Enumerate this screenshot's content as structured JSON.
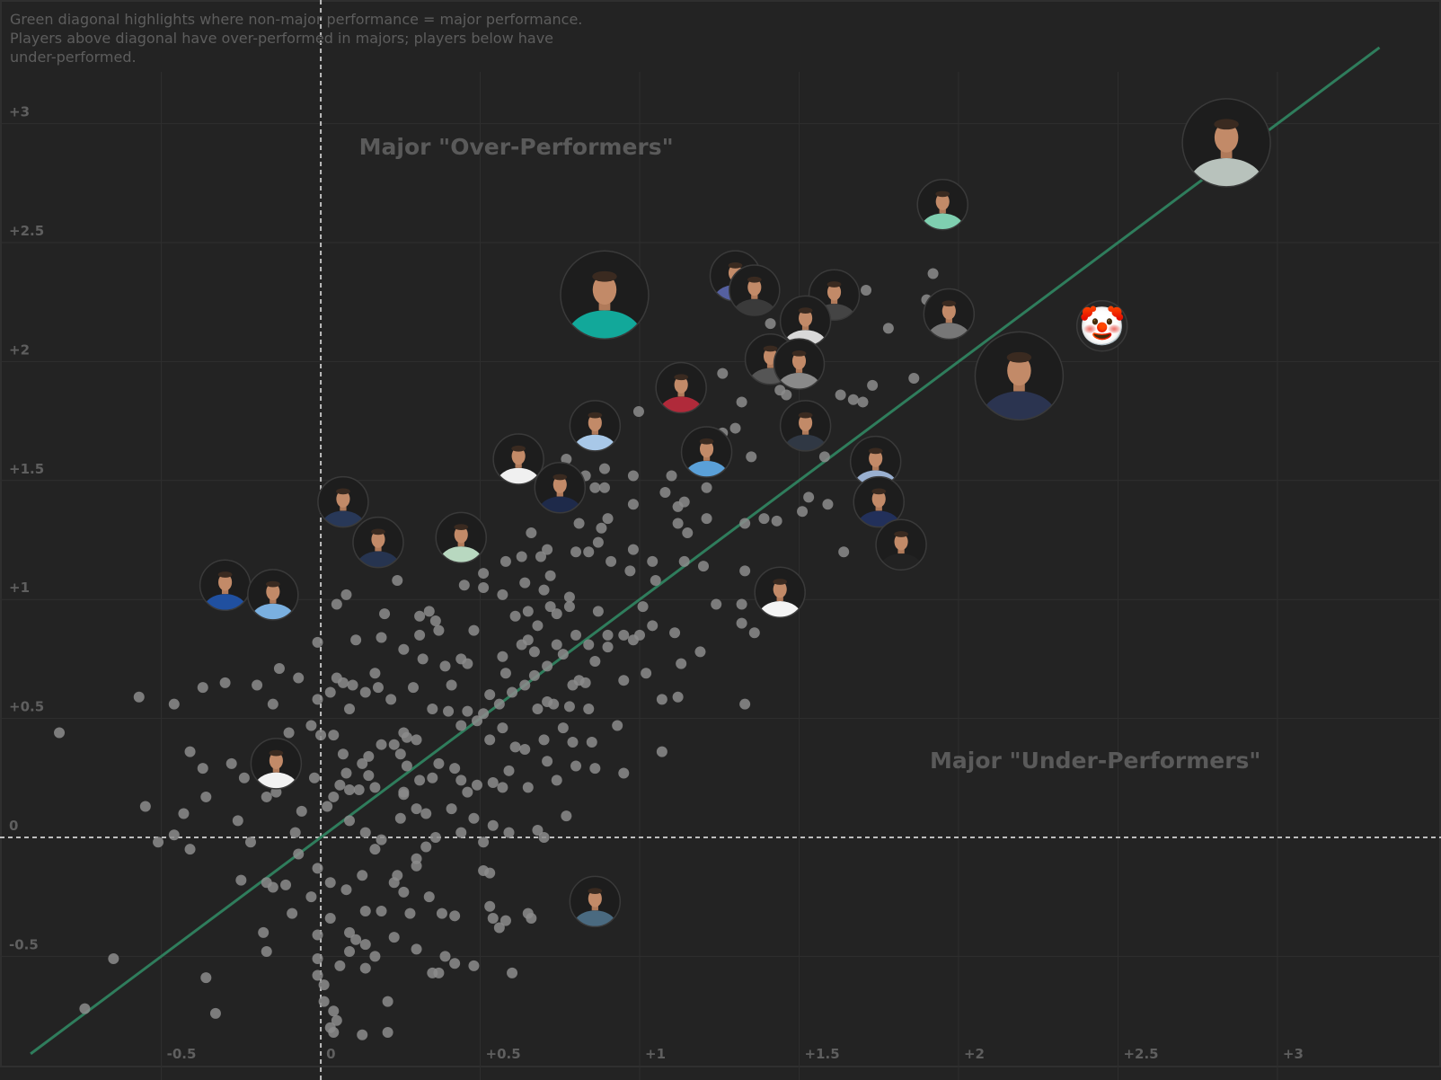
{
  "chart_data": {
    "type": "scatter",
    "title": "",
    "note": "Green diagonal highlights where non-major performance = major performance. Players above diagonal have over-performed in majors; players below have under-performed.",
    "xlabel": "",
    "ylabel": "",
    "xlim": [
      -1.006,
      3.513
    ],
    "ylim": [
      -1.02,
      3.52
    ],
    "grid": true,
    "x_ticks": [
      {
        "value": -0.5,
        "label": "-0.5"
      },
      {
        "value": 0,
        "label": "0"
      },
      {
        "value": 0.5,
        "label": "+0.5"
      },
      {
        "value": 1,
        "label": "+1"
      },
      {
        "value": 1.5,
        "label": "+1.5"
      },
      {
        "value": 2,
        "label": "+2"
      },
      {
        "value": 2.5,
        "label": "+2.5"
      },
      {
        "value": 3,
        "label": "+3"
      }
    ],
    "y_ticks": [
      {
        "value": -0.5,
        "label": "-0.5"
      },
      {
        "value": 0,
        "label": "0"
      },
      {
        "value": 0.5,
        "label": "+0.5"
      },
      {
        "value": 1,
        "label": "+1"
      },
      {
        "value": 1.5,
        "label": "+1.5"
      },
      {
        "value": 2,
        "label": "+2"
      },
      {
        "value": 2.5,
        "label": "+2.5"
      },
      {
        "value": 3,
        "label": "+3"
      }
    ],
    "reference_lines": {
      "x_zero": 0,
      "y_zero": 0
    },
    "diagonal": {
      "from": -0.91,
      "to": 3.32,
      "color": "#2f7d5c"
    },
    "annotations": [
      {
        "text": "Major \"Over-Performers\"",
        "x": 0.12,
        "y": 2.87
      },
      {
        "text": "Major \"Under-Performers\"",
        "x": 1.91,
        "y": 0.29
      }
    ],
    "colors": {
      "background": "#232323",
      "grid": "#2f2f2f",
      "dot": "#8c8c8c",
      "dashed": "#bdbdbd"
    },
    "highlighted_players": [
      {
        "x": 2.84,
        "y": 2.92,
        "size": "large",
        "shirt": "#b8c2bc",
        "kind": "photo"
      },
      {
        "x": 0.89,
        "y": 2.28,
        "size": "large",
        "shirt": "#12a89a",
        "kind": "photo"
      },
      {
        "x": 2.19,
        "y": 1.94,
        "size": "large",
        "shirt": "#2b3450",
        "kind": "photo"
      },
      {
        "x": 2.45,
        "y": 2.15,
        "size": "small",
        "shirt": "#e03030",
        "kind": "clown"
      },
      {
        "x": 1.95,
        "y": 2.66,
        "size": "small",
        "shirt": "#7fcfb0",
        "kind": "photo"
      },
      {
        "x": 1.3,
        "y": 2.36,
        "size": "small",
        "shirt": "#5560a0",
        "kind": "photo"
      },
      {
        "x": 1.36,
        "y": 2.3,
        "size": "small",
        "shirt": "#3a3a3a",
        "kind": "photo"
      },
      {
        "x": 1.61,
        "y": 2.28,
        "size": "small",
        "shirt": "#444444",
        "kind": "photo"
      },
      {
        "x": 1.52,
        "y": 2.17,
        "size": "small",
        "shirt": "#d8d8d8",
        "kind": "photo"
      },
      {
        "x": 1.97,
        "y": 2.2,
        "size": "small",
        "shirt": "#777777",
        "kind": "photo"
      },
      {
        "x": 1.41,
        "y": 2.01,
        "size": "small",
        "shirt": "#555555",
        "kind": "photo"
      },
      {
        "x": 1.5,
        "y": 1.99,
        "size": "small",
        "shirt": "#8a8a8a",
        "kind": "photo"
      },
      {
        "x": 1.13,
        "y": 1.89,
        "size": "small",
        "shirt": "#b02a3a",
        "kind": "photo"
      },
      {
        "x": 0.86,
        "y": 1.73,
        "size": "small",
        "shirt": "#a8c8e8",
        "kind": "photo"
      },
      {
        "x": 1.52,
        "y": 1.73,
        "size": "small",
        "shirt": "#303844",
        "kind": "photo"
      },
      {
        "x": 1.21,
        "y": 1.62,
        "size": "small",
        "shirt": "#5aa0d8",
        "kind": "photo"
      },
      {
        "x": 0.62,
        "y": 1.59,
        "size": "small",
        "shirt": "#f0f0f0",
        "kind": "photo"
      },
      {
        "x": 0.75,
        "y": 1.47,
        "size": "small",
        "shirt": "#1e2a4a",
        "kind": "photo"
      },
      {
        "x": 1.74,
        "y": 1.58,
        "size": "small",
        "shirt": "#9ab0d0",
        "kind": "photo"
      },
      {
        "x": 1.75,
        "y": 1.41,
        "size": "small",
        "shirt": "#22305a",
        "kind": "photo"
      },
      {
        "x": 1.82,
        "y": 1.23,
        "size": "small",
        "shirt": "#222222",
        "kind": "photo"
      },
      {
        "x": 0.07,
        "y": 1.41,
        "size": "small",
        "shirt": "#283858",
        "kind": "photo"
      },
      {
        "x": 0.18,
        "y": 1.24,
        "size": "small",
        "shirt": "#263450",
        "kind": "photo"
      },
      {
        "x": 0.44,
        "y": 1.26,
        "size": "small",
        "shirt": "#b8d8c0",
        "kind": "photo"
      },
      {
        "x": 1.44,
        "y": 1.03,
        "size": "small",
        "shirt": "#f4f4f4",
        "kind": "photo"
      },
      {
        "x": -0.3,
        "y": 1.06,
        "size": "small",
        "shirt": "#2050a0",
        "kind": "photo"
      },
      {
        "x": -0.15,
        "y": 1.02,
        "size": "small",
        "shirt": "#7ab0e0",
        "kind": "photo"
      },
      {
        "x": -0.14,
        "y": 0.31,
        "size": "small",
        "shirt": "#f2f2f2",
        "kind": "photo"
      },
      {
        "x": 0.86,
        "y": -0.27,
        "size": "small",
        "shirt": "#4a6a80",
        "kind": "photo"
      }
    ],
    "points": [
      [
        1.92,
        2.37
      ],
      [
        1.71,
        2.3
      ],
      [
        1.78,
        2.14
      ],
      [
        1.9,
        2.26
      ],
      [
        1.26,
        1.95
      ],
      [
        1.32,
        1.83
      ],
      [
        0.997,
        1.79
      ],
      [
        1.41,
        2.16
      ],
      [
        1.44,
        1.88
      ],
      [
        1.46,
        1.86
      ],
      [
        1.63,
        1.86
      ],
      [
        1.67,
        1.84
      ],
      [
        1.7,
        1.83
      ],
      [
        1.73,
        1.9
      ],
      [
        1.86,
        1.93
      ],
      [
        1.3,
        1.72
      ],
      [
        1.26,
        1.7
      ],
      [
        1.35,
        1.6
      ],
      [
        1.58,
        1.6
      ],
      [
        1.53,
        1.43
      ],
      [
        1.51,
        1.37
      ],
      [
        1.59,
        1.4
      ],
      [
        1.64,
        1.2
      ],
      [
        1.43,
        1.33
      ],
      [
        1.39,
        1.34
      ],
      [
        1.33,
        1.32
      ],
      [
        1.33,
        1.12
      ],
      [
        1.24,
        0.98
      ],
      [
        1.32,
        0.98
      ],
      [
        1.32,
        0.9
      ],
      [
        1.36,
        0.86
      ],
      [
        1.33,
        0.56
      ],
      [
        1.11,
        0.86
      ],
      [
        1.19,
        0.78
      ],
      [
        1.13,
        0.73
      ],
      [
        1.12,
        0.59
      ],
      [
        1.07,
        0.58
      ],
      [
        1.07,
        0.36
      ],
      [
        0.95,
        0.27
      ],
      [
        0.93,
        0.47
      ],
      [
        1.02,
        0.69
      ],
      [
        0.98,
        0.83
      ],
      [
        0.95,
        0.85
      ],
      [
        1.0,
        0.85
      ],
      [
        1.04,
        0.89
      ],
      [
        1.01,
        0.97
      ],
      [
        1.05,
        1.08
      ],
      [
        0.97,
        1.12
      ],
      [
        0.98,
        1.21
      ],
      [
        1.04,
        1.16
      ],
      [
        1.14,
        1.16
      ],
      [
        1.2,
        1.14
      ],
      [
        1.15,
        1.28
      ],
      [
        1.12,
        1.32
      ],
      [
        1.12,
        1.39
      ],
      [
        1.21,
        1.34
      ],
      [
        1.08,
        1.45
      ],
      [
        1.14,
        1.41
      ],
      [
        1.21,
        1.47
      ],
      [
        1.1,
        1.52
      ],
      [
        0.98,
        1.52
      ],
      [
        0.98,
        1.4
      ],
      [
        0.89,
        1.55
      ],
      [
        0.83,
        1.52
      ],
      [
        0.89,
        1.47
      ],
      [
        0.86,
        1.47
      ],
      [
        0.83,
        1.69
      ],
      [
        0.77,
        1.59
      ],
      [
        0.9,
        1.34
      ],
      [
        0.88,
        1.3
      ],
      [
        0.81,
        1.32
      ],
      [
        0.84,
        1.2
      ],
      [
        0.87,
        1.24
      ],
      [
        0.8,
        1.2
      ],
      [
        0.91,
        1.16
      ],
      [
        0.66,
        1.28
      ],
      [
        0.71,
        1.21
      ],
      [
        0.63,
        1.18
      ],
      [
        0.69,
        1.18
      ],
      [
        0.58,
        1.16
      ],
      [
        0.72,
        1.1
      ],
      [
        0.78,
        1.01
      ],
      [
        0.64,
        1.07
      ],
      [
        0.7,
        1.04
      ],
      [
        0.57,
        1.02
      ],
      [
        0.51,
        1.11
      ],
      [
        0.51,
        1.05
      ],
      [
        0.45,
        1.06
      ],
      [
        0.24,
        1.08
      ],
      [
        0.05,
        0.98
      ],
      [
        0.08,
        1.02
      ],
      [
        0.2,
        0.94
      ],
      [
        -0.01,
        0.82
      ],
      [
        0.31,
        0.93
      ],
      [
        0.34,
        0.95
      ],
      [
        0.36,
        0.91
      ],
      [
        0.37,
        0.87
      ],
      [
        0.31,
        0.85
      ],
      [
        0.26,
        0.79
      ],
      [
        0.32,
        0.75
      ],
      [
        0.19,
        0.84
      ],
      [
        0.11,
        0.83
      ],
      [
        0.17,
        0.69
      ],
      [
        0.18,
        0.63
      ],
      [
        0.14,
        0.61
      ],
      [
        0.1,
        0.64
      ],
      [
        0.07,
        0.65
      ],
      [
        0.05,
        0.67
      ],
      [
        0.03,
        0.61
      ],
      [
        -0.01,
        0.58
      ],
      [
        0.09,
        0.54
      ],
      [
        0.22,
        0.58
      ],
      [
        0.29,
        0.63
      ],
      [
        0.39,
        0.72
      ],
      [
        0.41,
        0.64
      ],
      [
        0.48,
        0.87
      ],
      [
        0.44,
        0.75
      ],
      [
        0.46,
        0.73
      ],
      [
        0.57,
        0.76
      ],
      [
        0.61,
        0.93
      ],
      [
        0.65,
        0.95
      ],
      [
        0.68,
        0.89
      ],
      [
        0.72,
        0.97
      ],
      [
        0.74,
        0.94
      ],
      [
        0.78,
        0.97
      ],
      [
        0.65,
        0.83
      ],
      [
        0.63,
        0.81
      ],
      [
        0.67,
        0.78
      ],
      [
        0.74,
        0.81
      ],
      [
        0.76,
        0.77
      ],
      [
        0.71,
        0.72
      ],
      [
        0.8,
        0.85
      ],
      [
        0.87,
        0.95
      ],
      [
        0.9,
        0.85
      ],
      [
        0.84,
        0.81
      ],
      [
        0.9,
        0.8
      ],
      [
        0.86,
        0.74
      ],
      [
        0.81,
        0.66
      ],
      [
        0.79,
        0.64
      ],
      [
        0.83,
        0.65
      ],
      [
        0.67,
        0.68
      ],
      [
        0.58,
        0.69
      ],
      [
        0.64,
        0.64
      ],
      [
        0.6,
        0.61
      ],
      [
        0.71,
        0.57
      ],
      [
        0.73,
        0.56
      ],
      [
        0.68,
        0.54
      ],
      [
        0.78,
        0.55
      ],
      [
        0.84,
        0.54
      ],
      [
        0.95,
        0.66
      ],
      [
        0.53,
        0.6
      ],
      [
        0.56,
        0.56
      ],
      [
        0.51,
        0.52
      ],
      [
        0.46,
        0.53
      ],
      [
        0.49,
        0.49
      ],
      [
        0.4,
        0.53
      ],
      [
        0.35,
        0.54
      ],
      [
        0.44,
        0.47
      ],
      [
        0.57,
        0.46
      ],
      [
        0.53,
        0.41
      ],
      [
        0.61,
        0.38
      ],
      [
        0.64,
        0.37
      ],
      [
        0.7,
        0.41
      ],
      [
        0.79,
        0.4
      ],
      [
        0.85,
        0.4
      ],
      [
        0.71,
        0.32
      ],
      [
        0.74,
        0.24
      ],
      [
        0.8,
        0.3
      ],
      [
        0.86,
        0.29
      ],
      [
        0.76,
        0.46
      ],
      [
        0.59,
        0.28
      ],
      [
        0.57,
        0.21
      ],
      [
        0.65,
        0.21
      ],
      [
        0.54,
        0.23
      ],
      [
        0.49,
        0.22
      ],
      [
        0.46,
        0.19
      ],
      [
        0.42,
        0.29
      ],
      [
        0.44,
        0.24
      ],
      [
        0.37,
        0.31
      ],
      [
        0.35,
        0.25
      ],
      [
        0.31,
        0.24
      ],
      [
        0.27,
        0.3
      ],
      [
        0.25,
        0.35
      ],
      [
        0.27,
        0.42
      ],
      [
        0.3,
        0.41
      ],
      [
        0.26,
        0.44
      ],
      [
        0.19,
        0.39
      ],
      [
        0.23,
        0.39
      ],
      [
        0.15,
        0.34
      ],
      [
        0.13,
        0.31
      ],
      [
        0.15,
        0.26
      ],
      [
        0.17,
        0.21
      ],
      [
        0.12,
        0.2
      ],
      [
        0.09,
        0.2
      ],
      [
        0.06,
        0.22
      ],
      [
        0.08,
        0.27
      ],
      [
        0.07,
        0.35
      ],
      [
        0.04,
        0.43
      ],
      [
        0.0,
        0.43
      ],
      [
        -0.03,
        0.47
      ],
      [
        -0.02,
        0.25
      ],
      [
        0.02,
        0.13
      ],
      [
        0.04,
        0.17
      ],
      [
        0.09,
        0.07
      ],
      [
        0.14,
        0.02
      ],
      [
        0.19,
        -0.01
      ],
      [
        0.25,
        0.08
      ],
      [
        0.26,
        0.19
      ],
      [
        0.3,
        0.12
      ],
      [
        0.33,
        0.1
      ],
      [
        0.41,
        0.12
      ],
      [
        0.48,
        0.08
      ],
      [
        0.44,
        0.02
      ],
      [
        0.36,
        0.0
      ],
      [
        0.54,
        0.05
      ],
      [
        0.59,
        0.02
      ],
      [
        0.68,
        0.03
      ],
      [
        0.7,
        0.0
      ],
      [
        0.77,
        0.09
      ],
      [
        -0.06,
        0.11
      ],
      [
        -0.08,
        0.02
      ],
      [
        -0.14,
        0.19
      ],
      [
        -0.17,
        0.17
      ],
      [
        -0.22,
        -0.02
      ],
      [
        -0.26,
        0.07
      ],
      [
        -0.24,
        0.25
      ],
      [
        -0.28,
        0.31
      ],
      [
        -0.37,
        0.29
      ],
      [
        -0.41,
        0.36
      ],
      [
        -0.36,
        0.17
      ],
      [
        -0.43,
        0.1
      ],
      [
        -0.46,
        0.01
      ],
      [
        -0.51,
        -0.02
      ],
      [
        -0.41,
        -0.05
      ],
      [
        -0.55,
        0.13
      ],
      [
        -0.1,
        0.44
      ],
      [
        -0.15,
        0.56
      ],
      [
        -0.2,
        0.64
      ],
      [
        -0.13,
        0.71
      ],
      [
        -0.07,
        0.67
      ],
      [
        -0.3,
        0.65
      ],
      [
        -0.37,
        0.63
      ],
      [
        -0.46,
        0.56
      ],
      [
        -0.57,
        0.59
      ],
      [
        -0.82,
        0.44
      ],
      [
        -0.07,
        -0.07
      ],
      [
        -0.01,
        -0.13
      ],
      [
        -0.11,
        -0.2
      ],
      [
        -0.15,
        -0.21
      ],
      [
        -0.17,
        -0.19
      ],
      [
        -0.25,
        -0.18
      ],
      [
        -0.09,
        -0.32
      ],
      [
        -0.03,
        -0.25
      ],
      [
        0.03,
        -0.19
      ],
      [
        0.08,
        -0.22
      ],
      [
        0.13,
        -0.16
      ],
      [
        0.03,
        -0.34
      ],
      [
        0.14,
        -0.31
      ],
      [
        0.19,
        -0.31
      ],
      [
        0.23,
        -0.19
      ],
      [
        0.24,
        -0.16
      ],
      [
        0.26,
        -0.23
      ],
      [
        0.28,
        -0.32
      ],
      [
        0.3,
        -0.09
      ],
      [
        0.33,
        -0.04
      ],
      [
        0.3,
        -0.12
      ],
      [
        0.17,
        -0.05
      ],
      [
        0.34,
        -0.25
      ],
      [
        0.38,
        -0.32
      ],
      [
        0.42,
        -0.33
      ],
      [
        0.51,
        -0.14
      ],
      [
        0.53,
        -0.15
      ],
      [
        0.53,
        -0.29
      ],
      [
        0.54,
        -0.34
      ],
      [
        0.56,
        -0.38
      ],
      [
        0.58,
        -0.35
      ],
      [
        0.65,
        -0.32
      ],
      [
        0.66,
        -0.34
      ],
      [
        0.51,
        -0.02
      ],
      [
        -0.18,
        -0.4
      ],
      [
        -0.17,
        -0.48
      ],
      [
        -0.36,
        -0.59
      ],
      [
        -0.33,
        -0.74
      ],
      [
        -0.65,
        -0.51
      ],
      [
        -0.74,
        -0.72
      ],
      [
        -0.01,
        -0.41
      ],
      [
        0.09,
        -0.4
      ],
      [
        0.11,
        -0.43
      ],
      [
        0.14,
        -0.45
      ],
      [
        0.09,
        -0.48
      ],
      [
        0.17,
        -0.5
      ],
      [
        0.06,
        -0.54
      ],
      [
        0.14,
        -0.55
      ],
      [
        0.23,
        -0.42
      ],
      [
        0.3,
        -0.47
      ],
      [
        0.39,
        -0.5
      ],
      [
        0.42,
        -0.53
      ],
      [
        0.35,
        -0.57
      ],
      [
        0.37,
        -0.57
      ],
      [
        0.48,
        -0.54
      ],
      [
        0.6,
        -0.57
      ],
      [
        -0.01,
        -0.51
      ],
      [
        -0.01,
        -0.58
      ],
      [
        0.01,
        -0.62
      ],
      [
        0.01,
        -0.69
      ],
      [
        0.21,
        -0.69
      ],
      [
        0.04,
        -0.73
      ],
      [
        0.05,
        -0.77
      ],
      [
        0.03,
        -0.8
      ],
      [
        0.13,
        -0.83
      ],
      [
        0.21,
        -0.82
      ],
      [
        0.04,
        -0.82
      ],
      [
        0.26,
        0.18
      ]
    ]
  }
}
